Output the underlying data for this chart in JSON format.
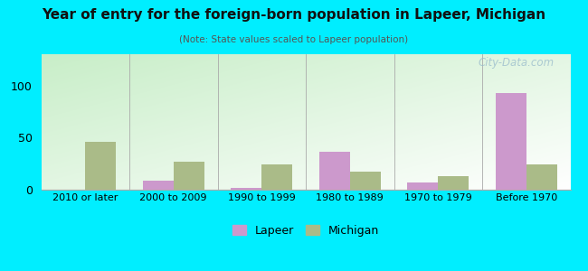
{
  "title": "Year of entry for the foreign-born population in Lapeer, Michigan",
  "subtitle": "(Note: State values scaled to Lapeer population)",
  "categories": [
    "2010 or later",
    "2000 to 2009",
    "1990 to 1999",
    "1980 to 1989",
    "1970 to 1979",
    "Before 1970"
  ],
  "lapeer_values": [
    0,
    9,
    2,
    36,
    7,
    93
  ],
  "michigan_values": [
    46,
    27,
    24,
    17,
    13,
    24
  ],
  "lapeer_color": "#cc99cc",
  "michigan_color": "#aabb88",
  "ylim": [
    0,
    130
  ],
  "yticks": [
    0,
    50,
    100
  ],
  "outer_bg": "#00eeff",
  "bar_width": 0.35,
  "legend_labels": [
    "Lapeer",
    "Michigan"
  ],
  "watermark": "City-Data.com"
}
